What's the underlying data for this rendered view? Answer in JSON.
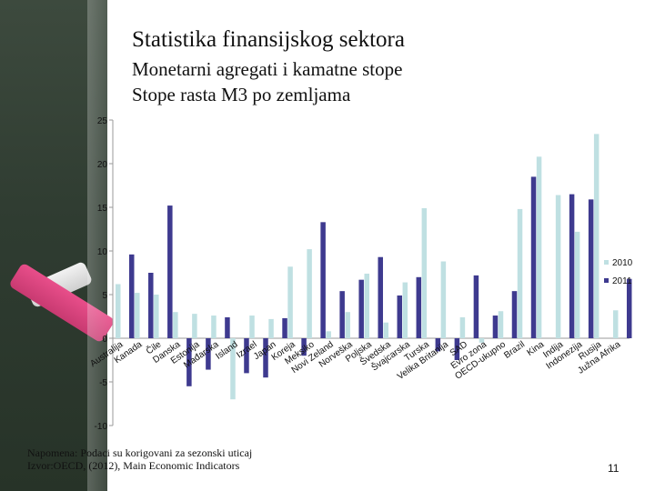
{
  "slide": {
    "title": "Statistika finansijskog sektora",
    "subtitle1": "Monetarni agregati i kamatne stope",
    "subtitle2": "Stope rasta M3  po zemljama",
    "note1": "Napomena: Podaci su korigovani za sezonski uticaj",
    "note2": "Izvor:OECD, (2012), Main Economic Indicators",
    "page_number": "11"
  },
  "colors": {
    "series2010": "#bfe0e2",
    "series2011": "#3e3a8f",
    "axis": "#9a9a9a",
    "text": "#111111"
  },
  "chart_data": {
    "type": "bar",
    "title": "Stope rasta M3  po zemljama",
    "xlabel": "",
    "ylabel": "",
    "ylim": [
      -10,
      25
    ],
    "yticks": [
      "-10",
      "-5",
      "0",
      "5",
      "10",
      "15",
      "20",
      "25"
    ],
    "yticks_values": [
      -10,
      -5,
      0,
      5,
      10,
      15,
      20,
      25
    ],
    "legend_position": "right",
    "categories": [
      "Australija",
      "Kanada",
      "Čile",
      "Danska",
      "Estonija",
      "Mađarska",
      "Island",
      "Izrael",
      "Japan",
      "Koreja",
      "Meksiko",
      "Novi Zeland",
      "Norveška",
      "Poljska",
      "Švedska",
      "Švajcarska",
      "Turska",
      "Velika Britanija",
      "SAD",
      "Evro zona",
      "OECD-ukupno",
      "Brazil",
      "Kina",
      "Indija",
      "Indonezija",
      "Rusija",
      "Južna Afrika"
    ],
    "series": [
      {
        "name": "2010",
        "values": [
          6.2,
          5.2,
          5.0,
          3.0,
          2.8,
          2.6,
          -7.0,
          2.6,
          2.2,
          8.2,
          10.2,
          0.8,
          3.0,
          7.4,
          1.8,
          6.4,
          14.9,
          8.8,
          2.4,
          -0.5,
          3.1,
          14.8,
          20.8,
          16.4,
          12.2,
          23.4,
          3.2
        ]
      },
      {
        "name": "2011",
        "values": [
          9.6,
          7.5,
          15.2,
          -5.5,
          -3.6,
          2.4,
          -4.0,
          -4.5,
          2.3,
          -2.0,
          13.3,
          5.4,
          6.7,
          9.3,
          4.9,
          7.0,
          -1.5,
          -2.5,
          7.2,
          2.6,
          5.4,
          18.5,
          0.0,
          16.5,
          15.9,
          0.0,
          6.8
        ]
      }
    ]
  }
}
